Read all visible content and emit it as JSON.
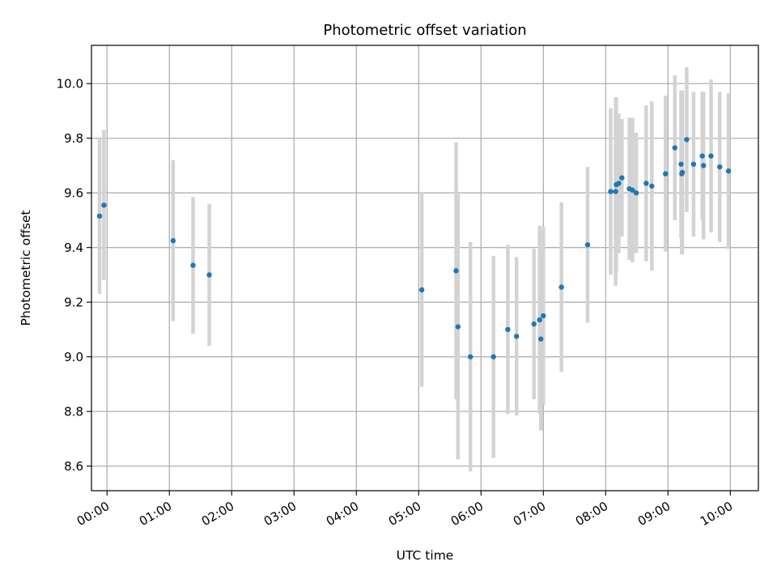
{
  "chart_data": {
    "type": "scatter",
    "title": "Photometric offset variation",
    "xlabel": "UTC time",
    "ylabel": "Photometric offset",
    "x_unit": "hours UTC",
    "xlim": [
      -0.25,
      10.45
    ],
    "ylim": [
      8.51,
      10.14
    ],
    "x_ticks": [
      {
        "value": 0,
        "label": "00:00"
      },
      {
        "value": 1,
        "label": "01:00"
      },
      {
        "value": 2,
        "label": "02:00"
      },
      {
        "value": 3,
        "label": "03:00"
      },
      {
        "value": 4,
        "label": "04:00"
      },
      {
        "value": 5,
        "label": "05:00"
      },
      {
        "value": 6,
        "label": "06:00"
      },
      {
        "value": 7,
        "label": "07:00"
      },
      {
        "value": 8,
        "label": "08:00"
      },
      {
        "value": 9,
        "label": "09:00"
      },
      {
        "value": 10,
        "label": "10:00"
      }
    ],
    "y_ticks": [
      {
        "value": 8.6,
        "label": "8.6"
      },
      {
        "value": 8.8,
        "label": "8.8"
      },
      {
        "value": 9.0,
        "label": "9.0"
      },
      {
        "value": 9.2,
        "label": "9.2"
      },
      {
        "value": 9.4,
        "label": "9.4"
      },
      {
        "value": 9.6,
        "label": "9.6"
      },
      {
        "value": 9.8,
        "label": "9.8"
      },
      {
        "value": 10.0,
        "label": "10.0"
      }
    ],
    "grid": true,
    "marker_color": "#1f77b4",
    "errorbar_color": "#d3d3d3",
    "points": [
      {
        "x": -0.12,
        "y": 9.515,
        "yerr": 0.285
      },
      {
        "x": -0.05,
        "y": 9.555,
        "yerr": 0.275
      },
      {
        "x": 1.06,
        "y": 9.425,
        "yerr": 0.295
      },
      {
        "x": 1.38,
        "y": 9.335,
        "yerr": 0.25
      },
      {
        "x": 1.64,
        "y": 9.3,
        "yerr": 0.26
      },
      {
        "x": 5.05,
        "y": 9.245,
        "yerr": 0.355
      },
      {
        "x": 5.6,
        "y": 9.315,
        "yerr": 0.47
      },
      {
        "x": 5.63,
        "y": 9.11,
        "yerr": 0.485
      },
      {
        "x": 5.83,
        "y": 9.0,
        "yerr": 0.42
      },
      {
        "x": 6.2,
        "y": 9.0,
        "yerr": 0.37
      },
      {
        "x": 6.43,
        "y": 9.1,
        "yerr": 0.31
      },
      {
        "x": 6.57,
        "y": 9.075,
        "yerr": 0.29
      },
      {
        "x": 6.85,
        "y": 9.12,
        "yerr": 0.275
      },
      {
        "x": 6.94,
        "y": 9.135,
        "yerr": 0.345
      },
      {
        "x": 6.96,
        "y": 9.065,
        "yerr": 0.335
      },
      {
        "x": 7.0,
        "y": 9.15,
        "yerr": 0.325
      },
      {
        "x": 7.29,
        "y": 9.255,
        "yerr": 0.31
      },
      {
        "x": 7.71,
        "y": 9.41,
        "yerr": 0.285
      },
      {
        "x": 8.08,
        "y": 9.605,
        "yerr": 0.305
      },
      {
        "x": 8.16,
        "y": 9.605,
        "yerr": 0.345
      },
      {
        "x": 8.17,
        "y": 9.63,
        "yerr": 0.32
      },
      {
        "x": 8.21,
        "y": 9.635,
        "yerr": 0.255
      },
      {
        "x": 8.26,
        "y": 9.655,
        "yerr": 0.215
      },
      {
        "x": 8.38,
        "y": 9.615,
        "yerr": 0.26
      },
      {
        "x": 8.43,
        "y": 9.61,
        "yerr": 0.265
      },
      {
        "x": 8.49,
        "y": 9.6,
        "yerr": 0.22
      },
      {
        "x": 8.65,
        "y": 9.635,
        "yerr": 0.285
      },
      {
        "x": 8.74,
        "y": 9.625,
        "yerr": 0.31
      },
      {
        "x": 8.96,
        "y": 9.67,
        "yerr": 0.285
      },
      {
        "x": 9.11,
        "y": 9.765,
        "yerr": 0.265
      },
      {
        "x": 9.21,
        "y": 9.705,
        "yerr": 0.27
      },
      {
        "x": 9.22,
        "y": 9.67,
        "yerr": 0.295
      },
      {
        "x": 9.23,
        "y": 9.675,
        "yerr": 0.3
      },
      {
        "x": 9.3,
        "y": 9.795,
        "yerr": 0.265
      },
      {
        "x": 9.41,
        "y": 9.705,
        "yerr": 0.265
      },
      {
        "x": 9.55,
        "y": 9.735,
        "yerr": 0.235
      },
      {
        "x": 9.57,
        "y": 9.7,
        "yerr": 0.27
      },
      {
        "x": 9.69,
        "y": 9.735,
        "yerr": 0.28
      },
      {
        "x": 9.83,
        "y": 9.695,
        "yerr": 0.275
      },
      {
        "x": 9.97,
        "y": 9.68,
        "yerr": 0.285
      }
    ]
  }
}
